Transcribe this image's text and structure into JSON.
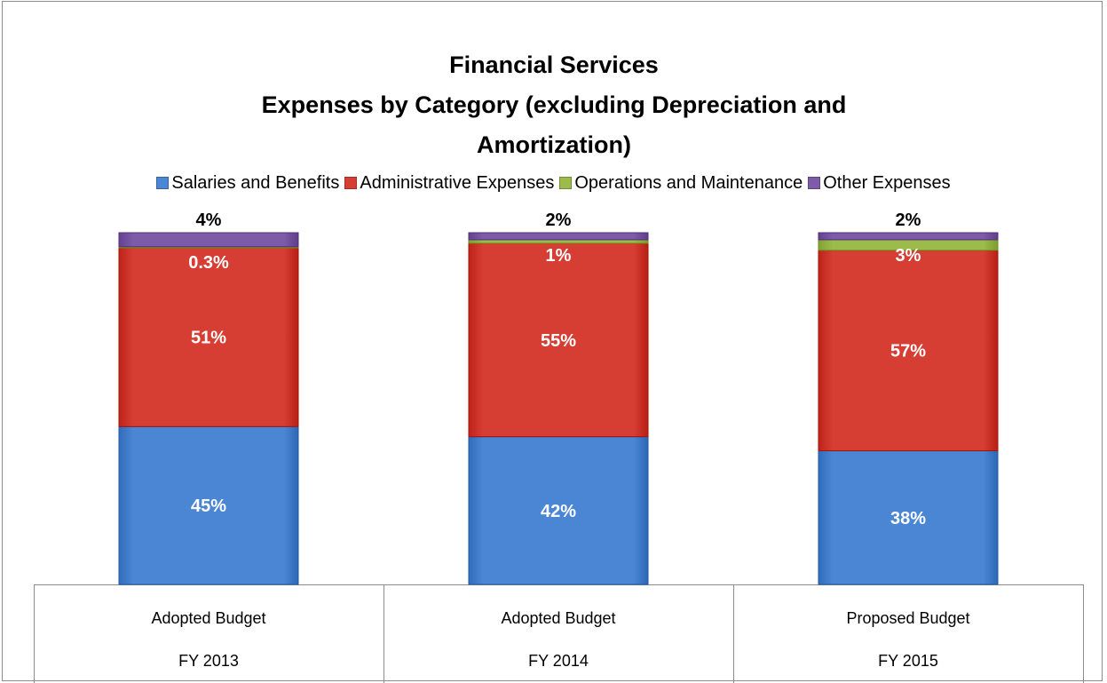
{
  "chart_data": {
    "type": "bar",
    "stacked": true,
    "normalized": true,
    "title": [
      "Financial Services",
      "Expenses by Category (excluding Depreciation and",
      "Amortization)"
    ],
    "legend_position": "top",
    "categories": [
      [
        "Adopted Budget",
        "FY 2013"
      ],
      [
        "Adopted Budget",
        "FY 2014"
      ],
      [
        "Proposed Budget",
        "FY 2015"
      ]
    ],
    "series": [
      {
        "name": "Salaries and Benefits",
        "color": "#4a86d4",
        "values": [
          45,
          42,
          38
        ],
        "labels": [
          "45%",
          "42%",
          "38%"
        ]
      },
      {
        "name": "Administrative Expenses",
        "color": "#d63d33",
        "values": [
          51,
          55,
          57
        ],
        "labels": [
          "51%",
          "55%",
          "57%"
        ]
      },
      {
        "name": "Operations and Maintenance",
        "color": "#9bbb4a",
        "values": [
          0.3,
          1,
          3
        ],
        "labels": [
          "0.3%",
          "1%",
          "3%"
        ]
      },
      {
        "name": "Other Expenses",
        "color": "#7d5ba8",
        "values": [
          4,
          2,
          2
        ],
        "labels": [
          "4%",
          "2%",
          "2%"
        ]
      }
    ],
    "ylim": [
      0,
      100
    ]
  }
}
